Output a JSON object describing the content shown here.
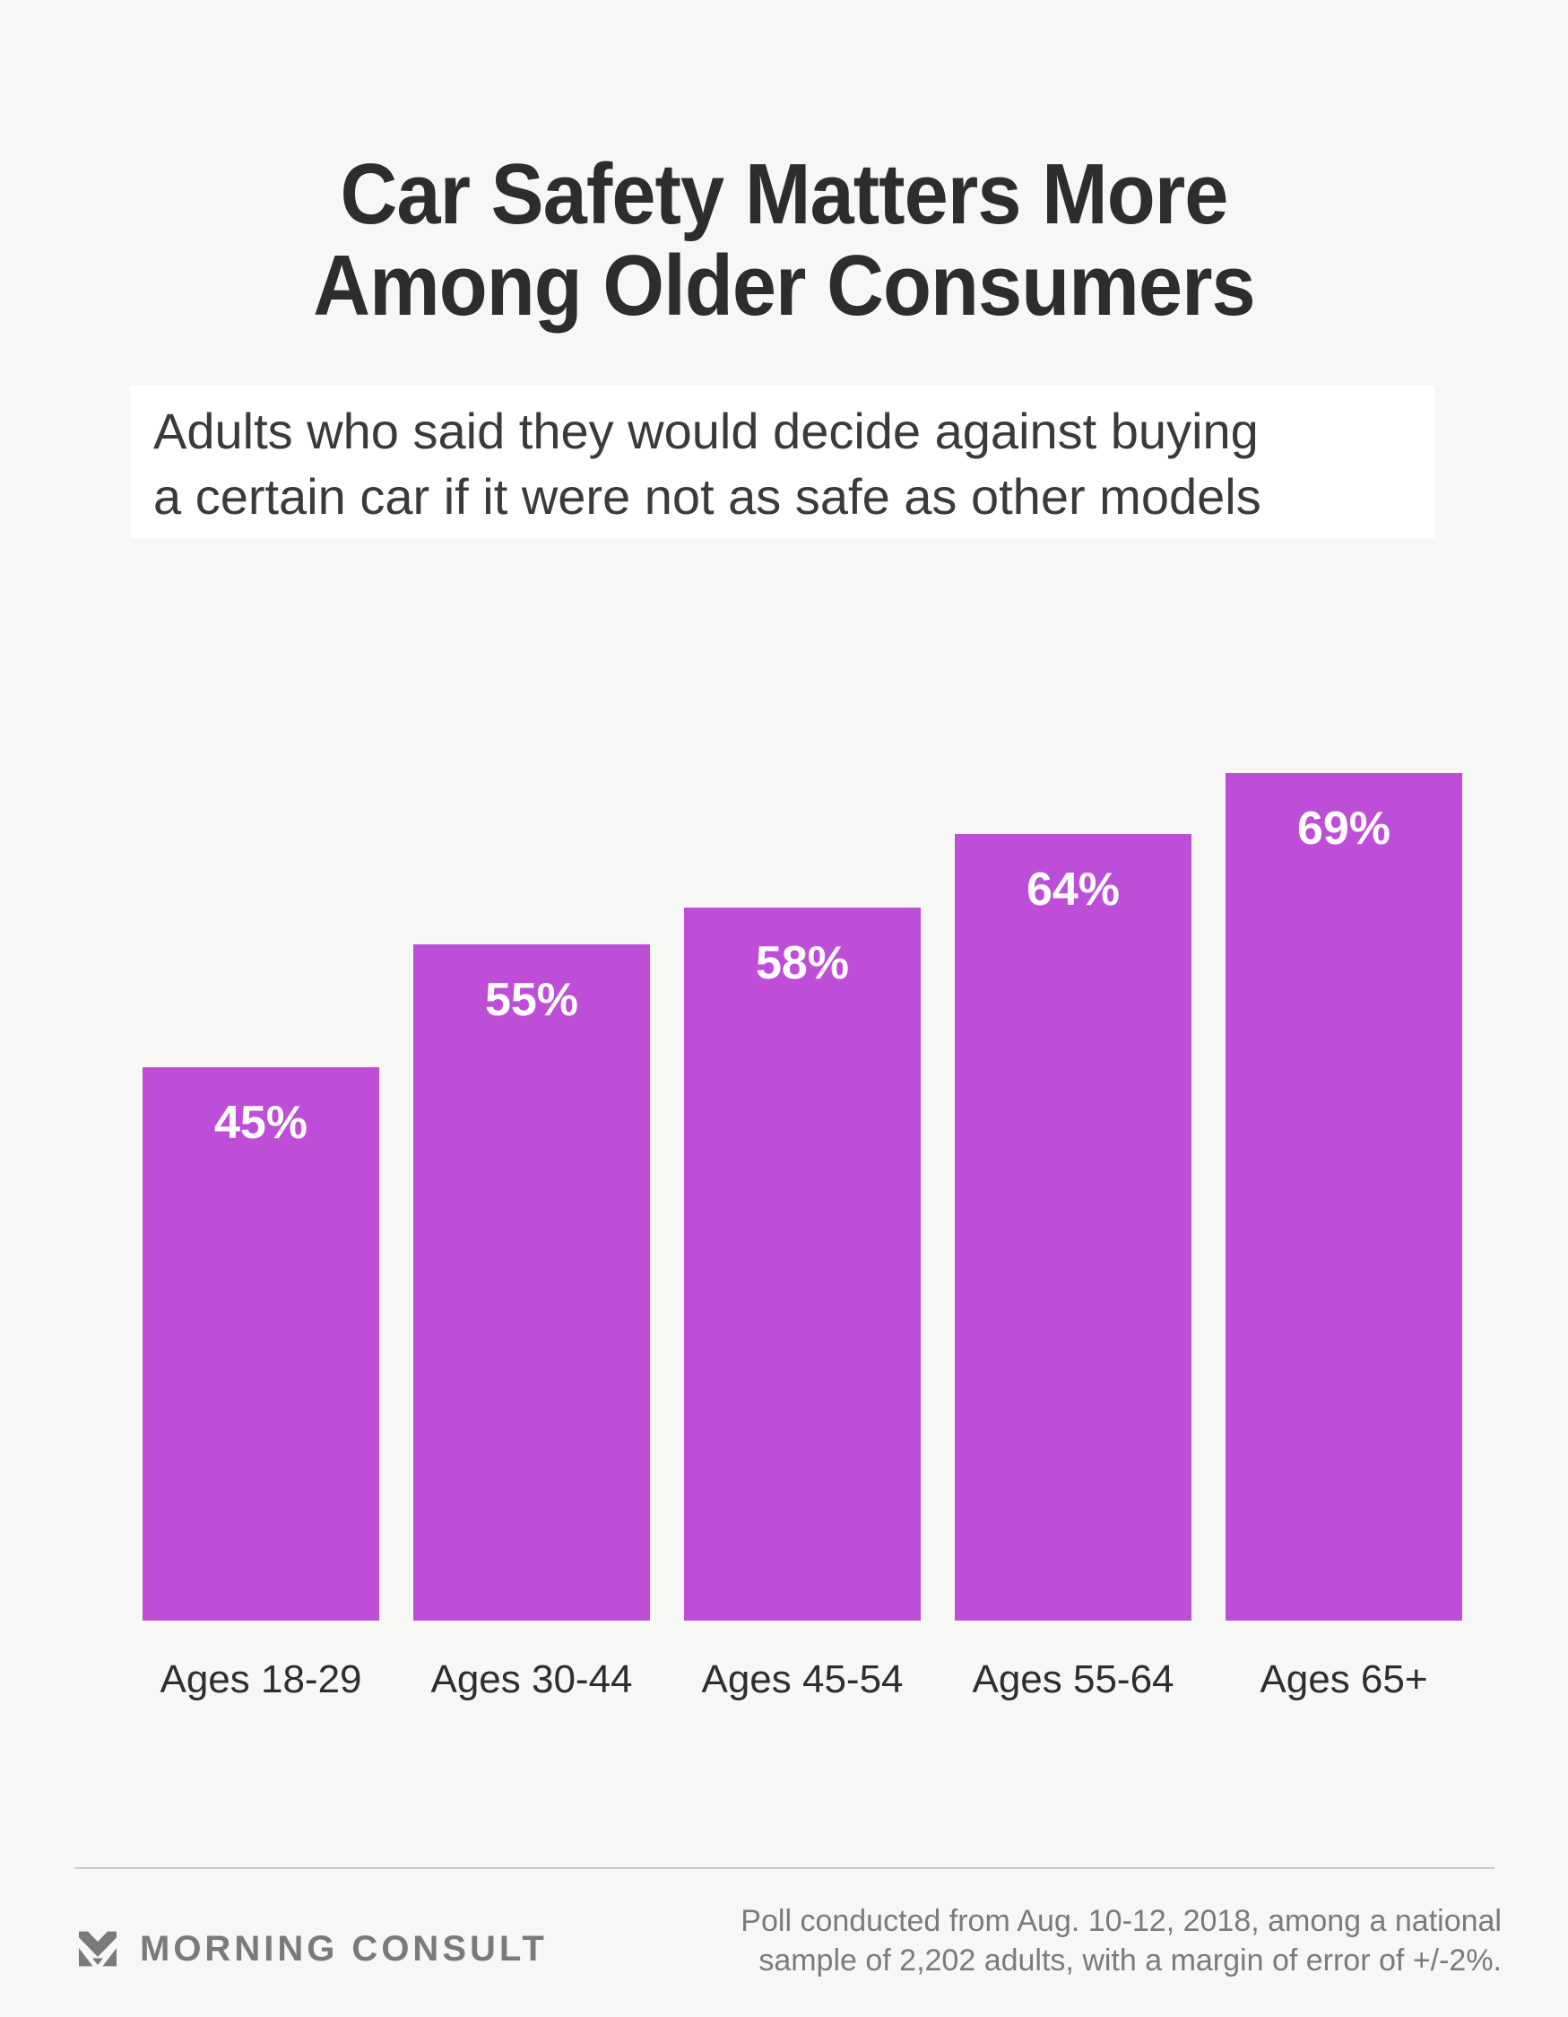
{
  "title": {
    "line1": "Car Safety Matters More",
    "line2": "Among Older Consumers"
  },
  "subtitle": {
    "line1": "Adults who said they would decide against buying",
    "line2": "a certain car if it were not as safe as other models"
  },
  "chart_data": {
    "type": "bar",
    "title": "Car Safety Matters More Among Older Consumers",
    "subtitle": "Adults who said they would decide against buying a certain car if it were not as safe as other models",
    "categories": [
      "Ages 18-29",
      "Ages 30-44",
      "Ages 45-54",
      "Ages 55-64",
      "Ages 65+"
    ],
    "values": [
      45,
      55,
      58,
      64,
      69
    ],
    "value_labels": [
      "45%",
      "55%",
      "58%",
      "64%",
      "69%"
    ],
    "xlabel": "",
    "ylabel": "",
    "ylim": [
      0,
      100
    ],
    "grid": false,
    "legend": false,
    "axes_visible": false,
    "value_label_position": "inside-top",
    "bar_color": "#be4ed8",
    "value_label_color": "#ffffff"
  },
  "footer": {
    "brand": "MORNING CONSULT",
    "logo_icon": "morning-consult-m-mark",
    "note_line1": "Poll conducted from Aug. 10-12, 2018, among a national",
    "note_line2": "sample of 2,202 adults, with a margin of error of +/-2%."
  },
  "colors": {
    "page_background": "#f7f7f5",
    "subtitle_background": "#ffffff",
    "title_text": "#2d2d2d",
    "subtitle_text": "#3a3a3a",
    "axis_label_text": "#2e2e2e",
    "bar": "#be4ed8",
    "bar_value_text": "#ffffff",
    "divider": "#c9c9c9",
    "footer_gray": "#7a7a7a"
  }
}
